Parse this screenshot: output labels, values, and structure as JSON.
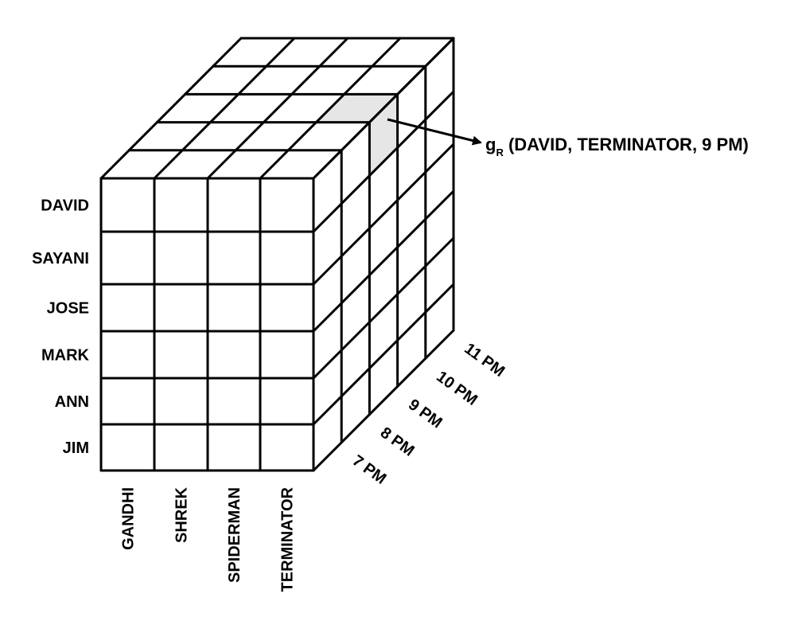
{
  "rows": [
    "DAVID",
    "SAYANI",
    "JOSE",
    "MARK",
    "ANN",
    "JIM"
  ],
  "columns": [
    "GANDHI",
    "SHREK",
    "SPIDERMAN",
    "TERMINATOR"
  ],
  "depth": [
    "7 PM",
    "8 PM",
    "9 PM",
    "10 PM",
    "11 PM"
  ],
  "annotation": {
    "prefix": "g",
    "subscript": "R",
    "tuple": " (DAVID, TERMINATOR, 9 PM)"
  },
  "highlight": {
    "row": "DAVID",
    "column": "TERMINATOR",
    "depth": "9 PM",
    "color": "#e6e6e6"
  }
}
